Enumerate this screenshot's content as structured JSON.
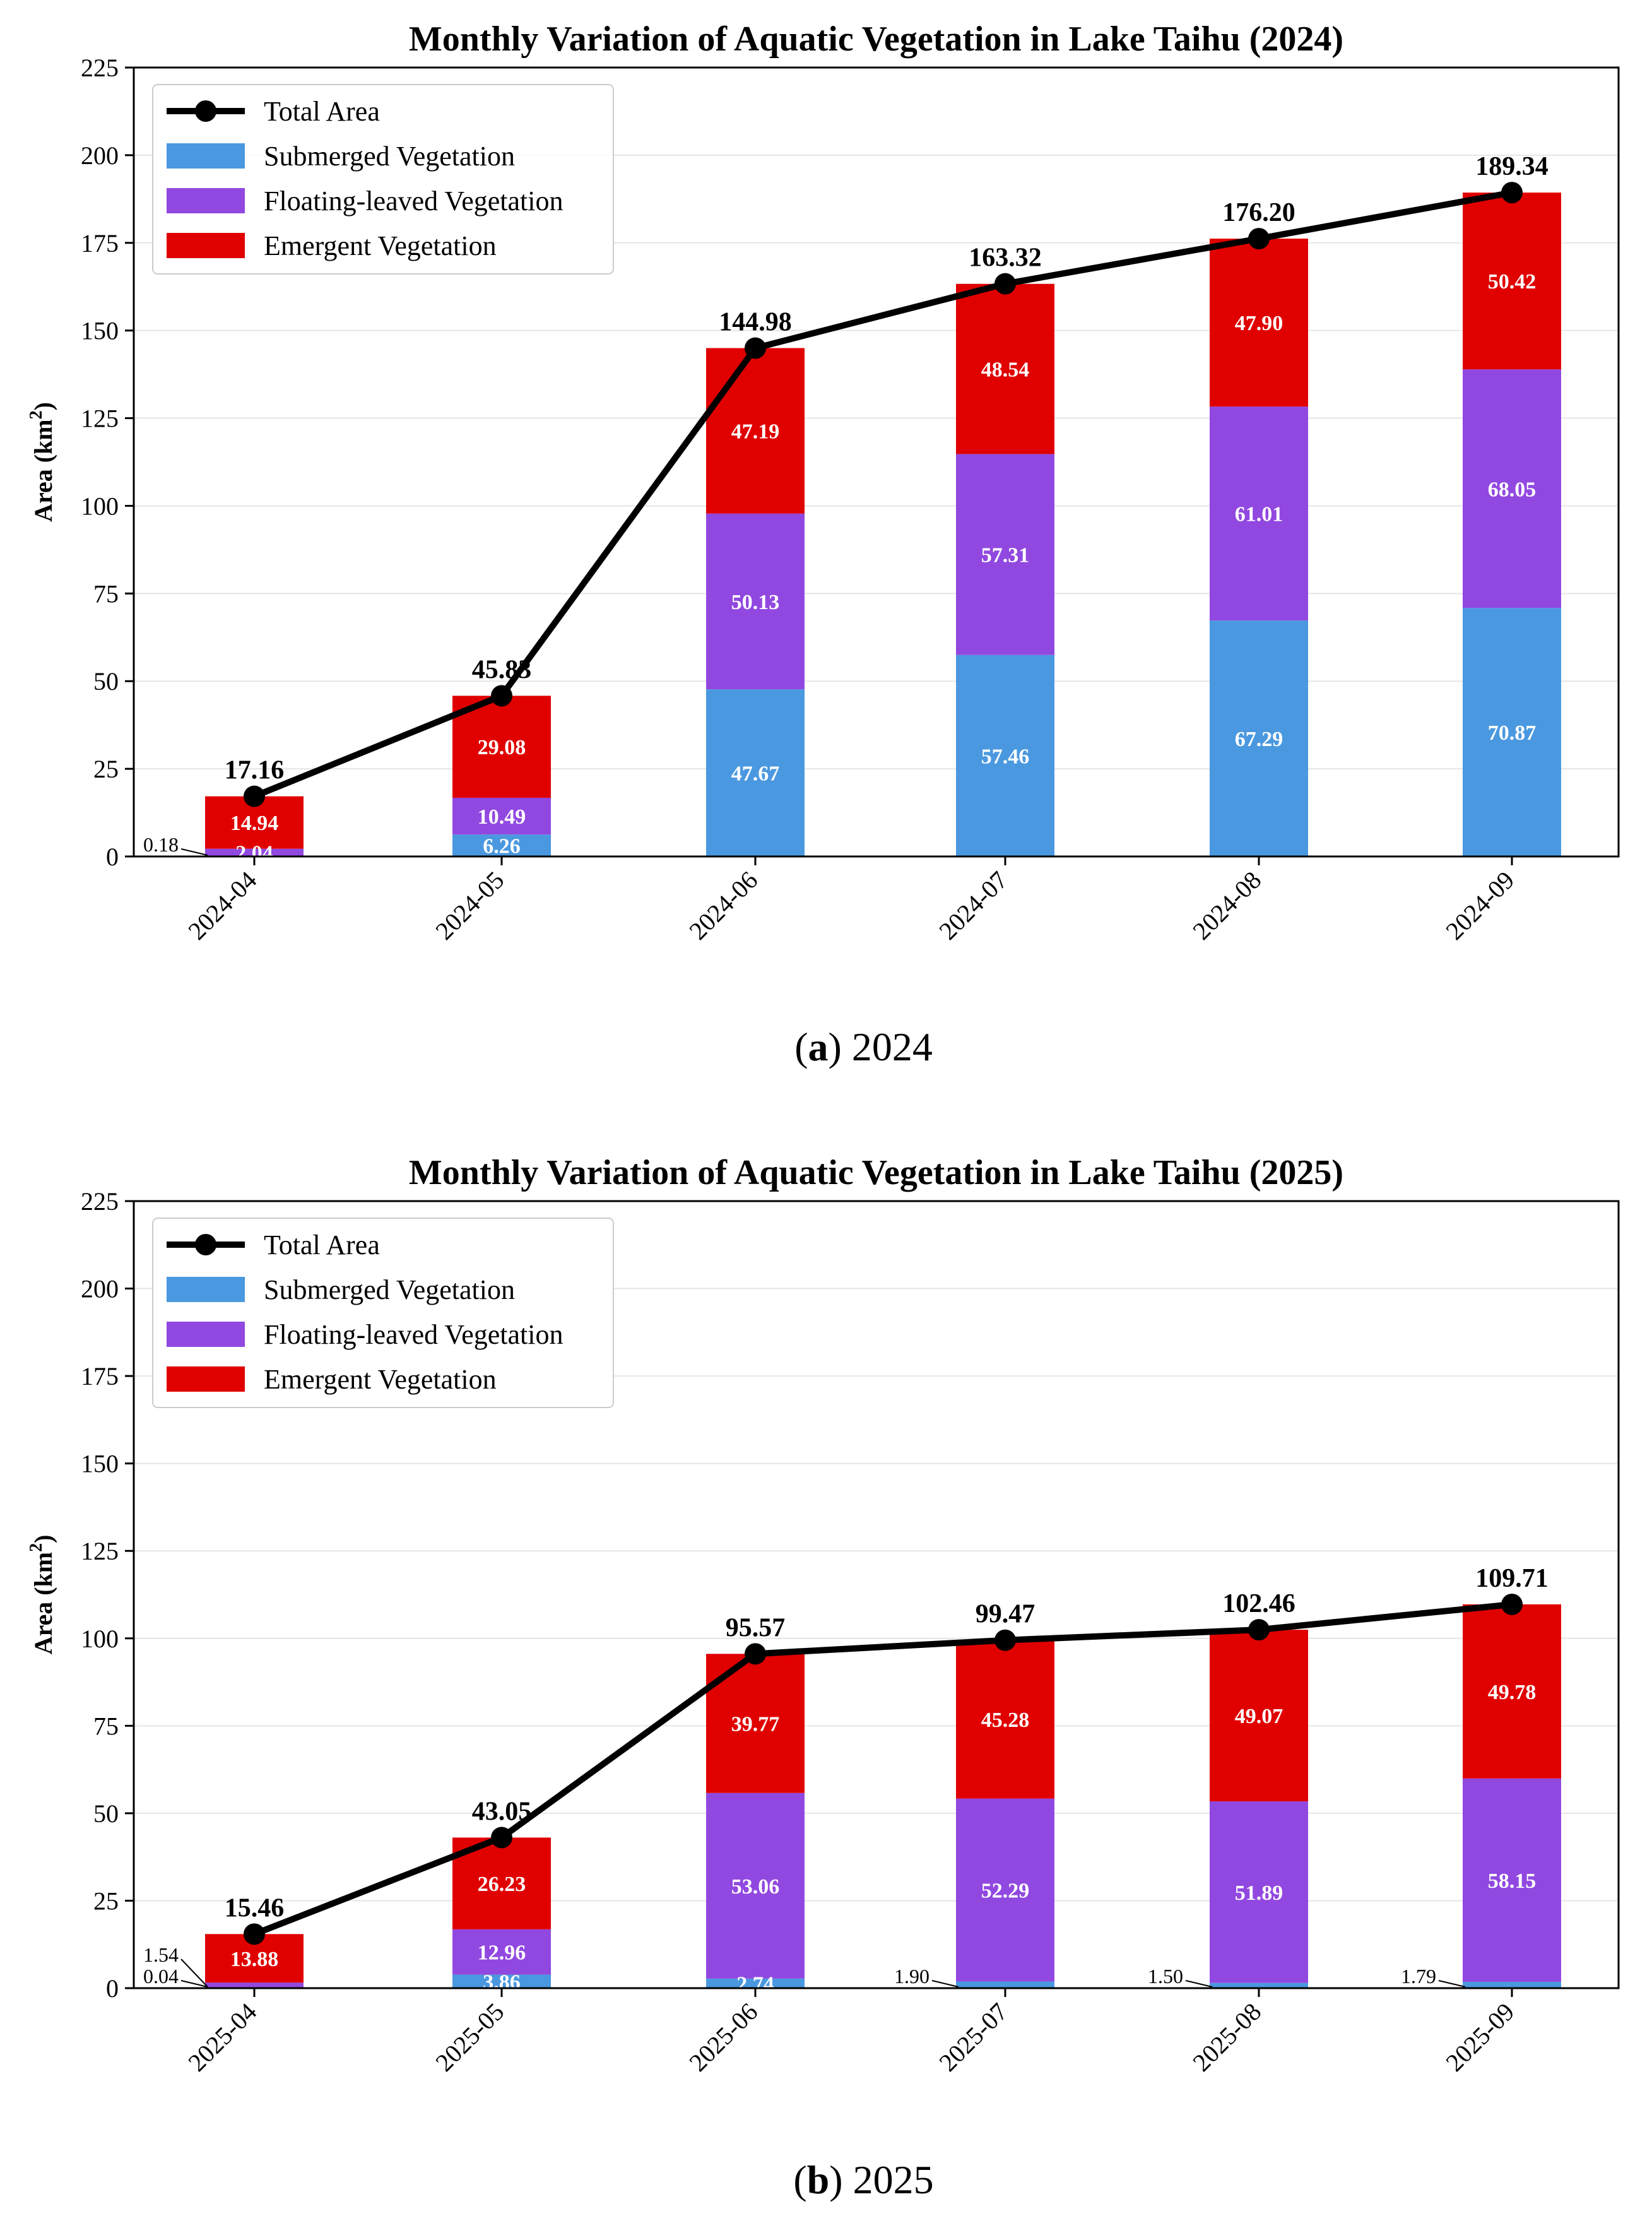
{
  "colors": {
    "submerged": "#4a98e0",
    "floating": "#9148e0",
    "emergent": "#e00000",
    "total": "#000000",
    "grid": "#e6e6e6"
  },
  "chart_data": [
    {
      "type": "bar",
      "stacked": true,
      "title": "Monthly Variation of Aquatic Vegetation in Lake Taihu (2024)",
      "caption_letter": "a",
      "caption_text": "2024",
      "ylabel": "Area (km",
      "ylabel_sup": "2",
      "ylabel_close": ")",
      "ylim": [
        0,
        225
      ],
      "yticks": [
        0,
        25,
        50,
        75,
        100,
        125,
        150,
        175,
        200,
        225
      ],
      "grid": "horizontal",
      "legend_position": "top-left",
      "categories": [
        "2024-04",
        "2024-05",
        "2024-06",
        "2024-07",
        "2024-08",
        "2024-09"
      ],
      "series": [
        {
          "name": "Submerged Vegetation",
          "key": "submerged",
          "values": [
            0.18,
            6.26,
            47.67,
            57.46,
            67.29,
            70.87
          ],
          "labels": [
            "0.18",
            "6.26",
            "47.67",
            "57.46",
            "67.29",
            "70.87"
          ]
        },
        {
          "name": "Floating-leaved Vegetation",
          "key": "floating",
          "values": [
            2.04,
            10.49,
            50.13,
            57.31,
            61.01,
            68.05
          ],
          "labels": [
            "2.04",
            "10.49",
            "50.13",
            "57.31",
            "61.01",
            "68.05"
          ]
        },
        {
          "name": "Emergent Vegetation",
          "key": "emergent",
          "values": [
            14.94,
            29.08,
            47.19,
            48.54,
            47.9,
            50.42
          ],
          "labels": [
            "14.94",
            "29.08",
            "47.19",
            "48.54",
            "47.90",
            "50.42"
          ]
        }
      ],
      "total": {
        "name": "Total Area",
        "values": [
          17.16,
          45.83,
          144.98,
          163.32,
          176.2,
          189.34
        ],
        "labels": [
          "17.16",
          "45.83",
          "144.98",
          "163.32",
          "176.20",
          "189.34"
        ]
      },
      "annotated": [
        {
          "series": 0,
          "index": 0
        }
      ]
    },
    {
      "type": "bar",
      "stacked": true,
      "title": "Monthly Variation of Aquatic Vegetation in Lake Taihu (2025)",
      "caption_letter": "b",
      "caption_text": "2025",
      "ylabel": "Area (km",
      "ylabel_sup": "2",
      "ylabel_close": ")",
      "ylim": [
        0,
        225
      ],
      "yticks": [
        0,
        25,
        50,
        75,
        100,
        125,
        150,
        175,
        200,
        225
      ],
      "grid": "horizontal",
      "legend_position": "top-left",
      "categories": [
        "2025-04",
        "2025-05",
        "2025-06",
        "2025-07",
        "2025-08",
        "2025-09"
      ],
      "series": [
        {
          "name": "Submerged Vegetation",
          "key": "submerged",
          "values": [
            0.04,
            3.86,
            2.74,
            1.9,
            1.5,
            1.79
          ],
          "labels": [
            "0.04",
            "3.86",
            "2.74",
            "1.90",
            "1.50",
            "1.79"
          ]
        },
        {
          "name": "Floating-leaved Vegetation",
          "key": "floating",
          "values": [
            1.54,
            12.96,
            53.06,
            52.29,
            51.89,
            58.15
          ],
          "labels": [
            "1.54",
            "12.96",
            "53.06",
            "52.29",
            "51.89",
            "58.15"
          ]
        },
        {
          "name": "Emergent Vegetation",
          "key": "emergent",
          "values": [
            13.88,
            26.23,
            39.77,
            45.28,
            49.07,
            49.78
          ],
          "labels": [
            "13.88",
            "26.23",
            "39.77",
            "45.28",
            "49.07",
            "49.78"
          ]
        }
      ],
      "total": {
        "name": "Total Area",
        "values": [
          15.46,
          43.05,
          95.57,
          99.47,
          102.46,
          109.71
        ],
        "labels": [
          "15.46",
          "43.05",
          "95.57",
          "99.47",
          "102.46",
          "109.71"
        ]
      },
      "annotated": [
        {
          "series": 0,
          "index": 0
        },
        {
          "series": 1,
          "index": 0
        },
        {
          "series": 0,
          "index": 3
        },
        {
          "series": 0,
          "index": 4
        },
        {
          "series": 0,
          "index": 5
        }
      ]
    }
  ]
}
